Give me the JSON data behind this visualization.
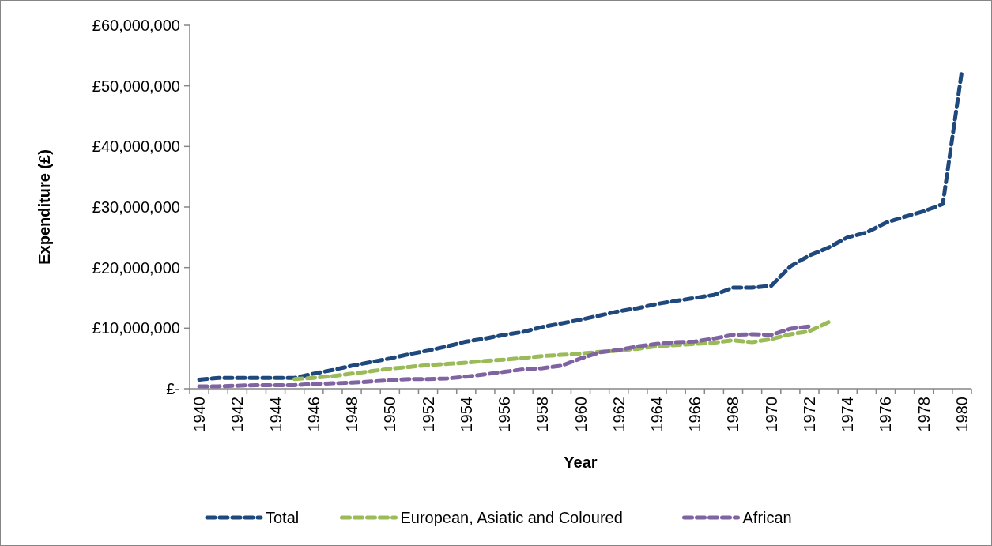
{
  "chart_data": {
    "type": "line",
    "xlabel": "Year",
    "ylabel": "Expenditure (£)",
    "categories": [
      "1940",
      null,
      "1942",
      null,
      "1944",
      null,
      "1946",
      null,
      "1948",
      null,
      "1950",
      null,
      "1952",
      null,
      "1954",
      null,
      "1956",
      null,
      "1958",
      null,
      "1960",
      null,
      "1962",
      null,
      "1964",
      null,
      "1966",
      null,
      "1968",
      null,
      "1970",
      null,
      "1972",
      null,
      "1974",
      null,
      "1976",
      null,
      "1978",
      null,
      "1980"
    ],
    "series": [
      {
        "name": "Total",
        "color": "#1f497d",
        "values": [
          1500000,
          1800000,
          1800000,
          1800000,
          1800000,
          1800000,
          2500000,
          3100000,
          3800000,
          4400000,
          5000000,
          5700000,
          6300000,
          7000000,
          7800000,
          8300000,
          8900000,
          9400000,
          10200000,
          10800000,
          11400000,
          12100000,
          12800000,
          13300000,
          14000000,
          14500000,
          15000000,
          15500000,
          16700000,
          16700000,
          17000000,
          20200000,
          22000000,
          23300000,
          25000000,
          25800000,
          27400000,
          28400000,
          29300000,
          30500000,
          52500000
        ]
      },
      {
        "name": "European, Asiatic and Coloured",
        "color": "#9bbb59",
        "values": [
          null,
          null,
          null,
          null,
          null,
          1600000,
          1800000,
          2100000,
          2500000,
          2900000,
          3300000,
          3600000,
          3900000,
          4100000,
          4300000,
          4600000,
          4800000,
          5100000,
          5400000,
          5600000,
          5800000,
          6100000,
          6300000,
          6600000,
          7000000,
          7200000,
          7400000,
          7600000,
          8000000,
          7700000,
          8200000,
          9000000,
          9500000,
          11000000,
          null,
          null,
          null,
          null,
          null,
          null,
          null
        ]
      },
      {
        "name": "African",
        "color": "#8064a2",
        "values": [
          400000,
          400000,
          500000,
          600000,
          600000,
          600000,
          800000,
          900000,
          1000000,
          1200000,
          1400000,
          1600000,
          1600000,
          1700000,
          2000000,
          2400000,
          2800000,
          3200000,
          3400000,
          3800000,
          5000000,
          6000000,
          6400000,
          7000000,
          7400000,
          7700000,
          7800000,
          8300000,
          8900000,
          9000000,
          8900000,
          9900000,
          10300000,
          null,
          null,
          null,
          null,
          null,
          null,
          null,
          null
        ]
      }
    ],
    "ylim": [
      0,
      60000000
    ],
    "yticks": [
      {
        "value": 0,
        "label": "£-"
      },
      {
        "value": 10000000,
        "label": "£10,000,000"
      },
      {
        "value": 20000000,
        "label": "£20,000,000"
      },
      {
        "value": 30000000,
        "label": "£30,000,000"
      },
      {
        "value": 40000000,
        "label": "£40,000,000"
      },
      {
        "value": 50000000,
        "label": "£50,000,000"
      },
      {
        "value": 60000000,
        "label": "£60,000,000"
      }
    ],
    "grid": false,
    "legend": "bottom",
    "marker": "none",
    "line_style": "dashed"
  }
}
